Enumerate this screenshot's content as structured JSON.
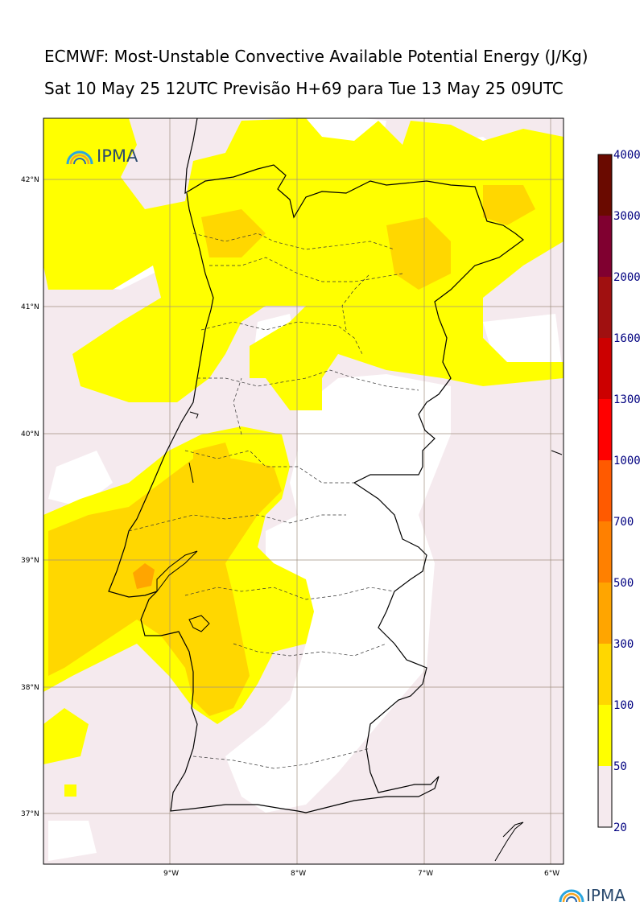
{
  "title_line1": "ECMWF: Most-Unstable Convective Available Potential Energy (J/Kg)",
  "title_line2": "Sat 10 May 25 12UTC Previsão H+69 para Tue 13 May 25 09UTC",
  "logo_text": "IPMA",
  "lat_labels": [
    "42°N",
    "41°N",
    "40°N",
    "39°N",
    "38°N",
    "37°N"
  ],
  "lon_labels": [
    "9°W",
    "8°W",
    "7°W",
    "6°W"
  ],
  "colorbar": {
    "levels": [
      "20",
      "50",
      "100",
      "300",
      "500",
      "700",
      "1000",
      "1300",
      "1600",
      "2000",
      "3000",
      "4000"
    ],
    "colors": [
      "#f5eaee",
      "#ffff00",
      "#ffd700",
      "#ffa500",
      "#ff8000",
      "#ff5a00",
      "#ff0000",
      "#cc0000",
      "#a01010",
      "#800030",
      "#6a0a00"
    ]
  },
  "palette": {
    "sea_low": "#f5eaee",
    "cape_50": "#ffff00",
    "cape_100": "#ffd700",
    "cape_300": "#ffa500",
    "coast": "#000000",
    "grid": "#a09080"
  }
}
